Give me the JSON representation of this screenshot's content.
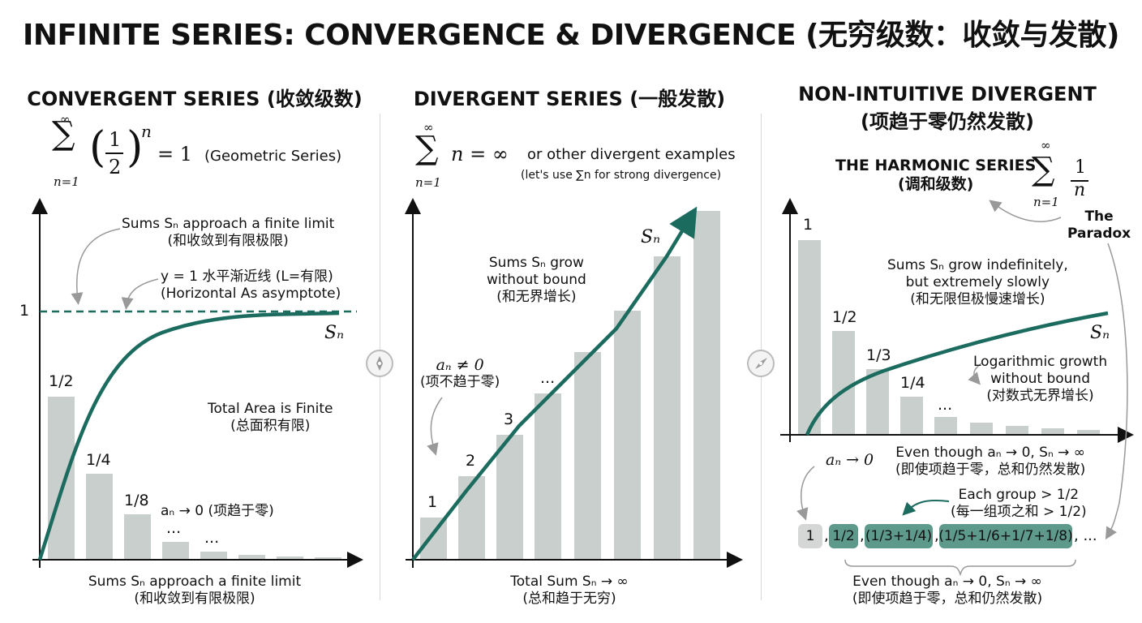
{
  "title": "INFINITE SERIES: CONVERGENCE & DIVERGENCE (无穷级数：收敛与发散)",
  "colors": {
    "accent": "#1b6b5e",
    "bar": "#c9cfcd",
    "chip_dark": "#5d9a8c",
    "chip_light": "#d4d7d6"
  },
  "panel1": {
    "title": "CONVERGENT SERIES (收敛级数)",
    "formula_sum_top": "∞",
    "formula_sum_bottom": "n=1",
    "formula_frac_num": "1",
    "formula_frac_den": "2",
    "formula_exp": "n",
    "formula_eq": "= 1",
    "formula_note": "(Geometric Series)",
    "note_limit": "Sums Sₙ approach a finite limit",
    "note_limit_cn": "(和收敛到有限极限)",
    "asymptote_label": "y = 1 水平渐近线 (L=有限)",
    "asymptote_label2": "(Horizontal As asymptote)",
    "y_tick": "1",
    "curve_label": "Sₙ",
    "area_note": "Total Area is Finite",
    "area_note_cn": "(总面积有限)",
    "an_note": "aₙ → 0 (项趋于零)",
    "bar_labels": [
      "1/2",
      "1/4",
      "1/8",
      "...",
      "..."
    ],
    "bottom_note": "Sums Sₙ approach a finite limit",
    "bottom_note_cn": "(和收敛到有限极限)"
  },
  "panel2": {
    "title": "DIVERGENT SERIES (一般发散)",
    "formula_main": "n = ∞",
    "formula_sum_top": "∞",
    "formula_sum_bottom": "n=1",
    "formula_note": "or other divergent examples",
    "formula_note2": "(let's use ∑n for strong divergence)",
    "grow_note": "Sums Sₙ grow",
    "grow_note2": "without bound",
    "grow_note_cn": "(和无界增长)",
    "curve_label": "Sₙ",
    "an_note": "aₙ ≠ 0",
    "an_note_cn": "(项不趋于零)",
    "bar_labels": [
      "1",
      "2",
      "3",
      "..."
    ],
    "bottom_note": "Total Sum Sₙ → ∞",
    "bottom_note_cn": "(总和趋于无穷)"
  },
  "panel3": {
    "title": "NON-INTUITIVE DIVERGENT",
    "title_cn": "(项趋于零仍然发散)",
    "harmonic_label": "THE HARMONIC SERIES",
    "harmonic_label_cn": "(调和级数)",
    "formula_sum_top": "∞",
    "formula_sum_bottom": "n=1",
    "formula_frac_num": "1",
    "formula_frac_den": "n",
    "paradox": "The",
    "paradox2": "Paradox",
    "grow_note": "Sums Sₙ grow indefinitely,",
    "grow_note2": "but extremely slowly",
    "grow_note_cn": "(和无限但极慢速增长)",
    "curve_label": "Sₙ",
    "log_note": "Logarithmic growth",
    "log_note2": "without bound",
    "log_note_cn": "(对数式无界增长)",
    "bar_labels": [
      "1",
      "1/2",
      "1/3",
      "1/4",
      "..."
    ],
    "an_note": "aₙ → 0",
    "even_note": "Even though aₙ → 0, Sₙ → ∞",
    "even_note_cn": "(即使项趋于零，总和仍然发散)",
    "group_note": "Each group > 1/2",
    "group_note_cn": "(每一组项之和 > 1/2)",
    "chips": [
      "1",
      "1/2",
      "(1/3+1/4)",
      "(1/5+1/6+1/7+1/8)"
    ],
    "chip_seps": [
      ",",
      ",",
      ",",
      ", ..."
    ],
    "bottom_note": "Even though aₙ → 0, Sₙ → ∞",
    "bottom_note_cn": "(即使项趋于零，总和仍然发散)"
  }
}
